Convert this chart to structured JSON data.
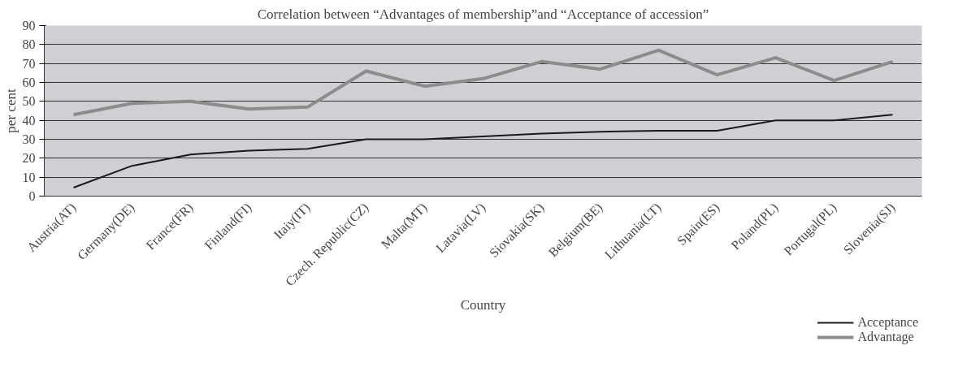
{
  "chart_data": {
    "type": "line",
    "title": "Correlation between “Advantages of membership”and “Acceptance of accession”",
    "xlabel": "Country",
    "ylabel": "per cent",
    "categories": [
      "Austria(AT)",
      "Germany(DE)",
      "France(FR)",
      "Finland(FI)",
      "Itaiy(IT)",
      "Czech. Republic(CZ)",
      "Malta(MT)",
      "Latavia(LV)",
      "Siovakia(SK)",
      "Belgium(BE)",
      "Lithuania(LT)",
      "Spain(ES)",
      "Poland(PL)",
      "Portugal(PL)",
      "Slovenia(SJ)"
    ],
    "series": [
      {
        "name": "Acceptance",
        "color": "#1a1a1a",
        "values": [
          4.5,
          16,
          22,
          24,
          25,
          30,
          30,
          31.5,
          33,
          34,
          34.5,
          34.5,
          40,
          40,
          43
        ]
      },
      {
        "name": "Advantage",
        "color": "#8c8c8c",
        "values": [
          43,
          49,
          50,
          46,
          47,
          66,
          58,
          62,
          71,
          67,
          77,
          64,
          73,
          61,
          71
        ]
      }
    ],
    "ylim": [
      0,
      90
    ],
    "yticks": [
      0,
      10,
      20,
      30,
      40,
      50,
      60,
      70,
      80,
      90
    ],
    "grid": "y",
    "legend": "bottom right",
    "marker": "none",
    "line_style": "solid"
  }
}
